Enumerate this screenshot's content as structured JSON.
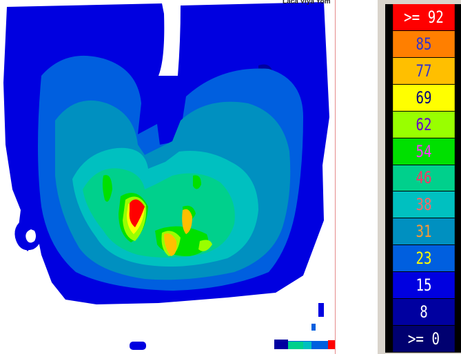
{
  "header": {
    "text": "Laca Viya Yom"
  },
  "legend": {
    "items": [
      {
        "label": ">= 92",
        "bg": "#ff0000",
        "fg": "#ffffff"
      },
      {
        "label": "85",
        "bg": "#ff7f00",
        "fg": "#3333cc"
      },
      {
        "label": "77",
        "bg": "#ffbf00",
        "fg": "#3333cc"
      },
      {
        "label": "69",
        "bg": "#ffff00",
        "fg": "#000080"
      },
      {
        "label": "62",
        "bg": "#99ff00",
        "fg": "#6600cc"
      },
      {
        "label": "54",
        "bg": "#00e000",
        "fg": "#ff33ff"
      },
      {
        "label": "46",
        "bg": "#00d08c",
        "fg": "#ff3366"
      },
      {
        "label": "38",
        "bg": "#00c0c0",
        "fg": "#ff6666"
      },
      {
        "label": "31",
        "bg": "#0090c0",
        "fg": "#ff9933"
      },
      {
        "label": "23",
        "bg": "#005fdf",
        "fg": "#ffff00"
      },
      {
        "label": "15",
        "bg": "#0000e0",
        "fg": "#ffffff"
      },
      {
        "label": "8",
        "bg": "#0000a0",
        "fg": "#ffffff"
      },
      {
        "label": ">= 0",
        "bg": "#000070",
        "fg": "#ffffff"
      }
    ]
  },
  "colors": {
    "level_8": "#0000a0",
    "level_15": "#0000e0",
    "level_23": "#005fdf",
    "level_31": "#0090c0",
    "level_38": "#00c0c0",
    "level_46": "#00d08c",
    "level_54": "#00e000",
    "level_62": "#99ff00",
    "level_69": "#ffff00",
    "level_77": "#ffbf00",
    "level_92": "#ff0000"
  }
}
